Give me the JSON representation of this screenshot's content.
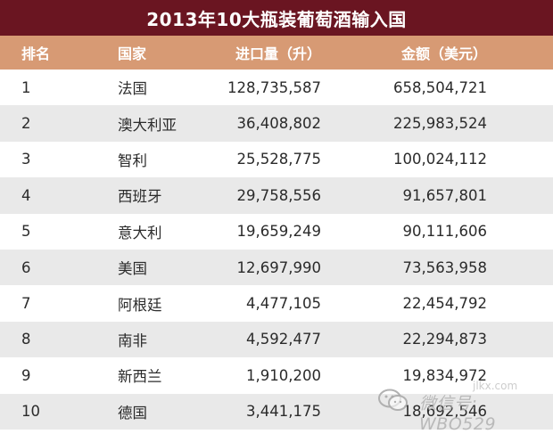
{
  "title": "2013年10大瓶装葡萄酒输入国",
  "columns": {
    "rank": "排名",
    "country": "国家",
    "quantity": "进口量（升）",
    "amount": "金额（美元）"
  },
  "rows": [
    {
      "rank": "1",
      "country": "法国",
      "quantity": "128,735,587",
      "amount": "658,504,721"
    },
    {
      "rank": "2",
      "country": "澳大利亚",
      "quantity": "36,408,802",
      "amount": "225,983,524"
    },
    {
      "rank": "3",
      "country": "智利",
      "quantity": "25,528,775",
      "amount": "100,024,112"
    },
    {
      "rank": "4",
      "country": "西班牙",
      "quantity": "29,758,556",
      "amount": "91,657,801"
    },
    {
      "rank": "5",
      "country": "意大利",
      "quantity": "19,659,249",
      "amount": "90,111,606"
    },
    {
      "rank": "6",
      "country": "美国",
      "quantity": "12,697,990",
      "amount": "73,563,958"
    },
    {
      "rank": "7",
      "country": "阿根廷",
      "quantity": "4,477,105",
      "amount": "22,454,792"
    },
    {
      "rank": "8",
      "country": "南非",
      "quantity": "4,592,477",
      "amount": "22,294,873"
    },
    {
      "rank": "9",
      "country": "新西兰",
      "quantity": "1,910,200",
      "amount": "19,834,972"
    },
    {
      "rank": "10",
      "country": "德国",
      "quantity": "3,441,175",
      "amount": "18,692,546"
    }
  ],
  "watermark": {
    "icon": "wechat-icon",
    "text": "微信号: WBO529",
    "site": "jlkx.com"
  },
  "colors": {
    "title_bg": "#6a1521",
    "header_bg": "#d79a74",
    "alt_row_bg": "#e9e9e9"
  }
}
